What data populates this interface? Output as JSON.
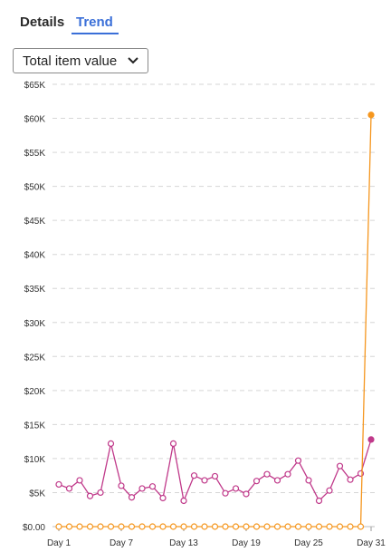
{
  "tabs": [
    {
      "label": "Details",
      "active": false
    },
    {
      "label": "Trend",
      "active": true
    }
  ],
  "metric_select": {
    "selected": "Total item value"
  },
  "icons": {
    "dropdown": "chevron-down-icon"
  },
  "colors": {
    "accent": "#3a6fd8",
    "series_purple": "#c0398a",
    "series_orange": "#f5961e"
  },
  "chart_data": {
    "type": "line",
    "x": [
      1,
      2,
      3,
      4,
      5,
      6,
      7,
      8,
      9,
      10,
      11,
      12,
      13,
      14,
      15,
      16,
      17,
      18,
      19,
      20,
      21,
      22,
      23,
      24,
      25,
      26,
      27,
      28,
      29,
      30,
      31
    ],
    "x_tick_labels": [
      "Day 1",
      "Day 7",
      "Day 13",
      "Day 19",
      "Day 25",
      "Day 31"
    ],
    "x_tick_positions": [
      1,
      7,
      13,
      19,
      25,
      31
    ],
    "y_tick_values": [
      0,
      5000,
      10000,
      15000,
      20000,
      25000,
      30000,
      35000,
      40000,
      45000,
      50000,
      55000,
      60000,
      65000
    ],
    "y_tick_labels": [
      "$0.00",
      "$5K",
      "$10K",
      "$15K",
      "$20K",
      "$25K",
      "$30K",
      "$35K",
      "$40K",
      "$45K",
      "$50K",
      "$55K",
      "$60K",
      "$65K"
    ],
    "ylim": [
      0,
      65000
    ],
    "grid": true,
    "series": [
      {
        "color": "#c0398a",
        "values": [
          6200,
          5600,
          6800,
          4500,
          5000,
          12200,
          6000,
          4300,
          5600,
          5900,
          4200,
          12200,
          3800,
          7500,
          6800,
          7400,
          4900,
          5600,
          4800,
          6700,
          7700,
          6800,
          7700,
          9700,
          6800,
          3800,
          5300,
          8900,
          6900,
          7800,
          12800
        ]
      },
      {
        "color": "#f5961e",
        "values": [
          0,
          0,
          0,
          0,
          0,
          0,
          0,
          0,
          0,
          0,
          0,
          0,
          0,
          0,
          0,
          0,
          0,
          0,
          0,
          0,
          0,
          0,
          0,
          0,
          0,
          0,
          0,
          0,
          0,
          0,
          60500
        ]
      }
    ]
  }
}
